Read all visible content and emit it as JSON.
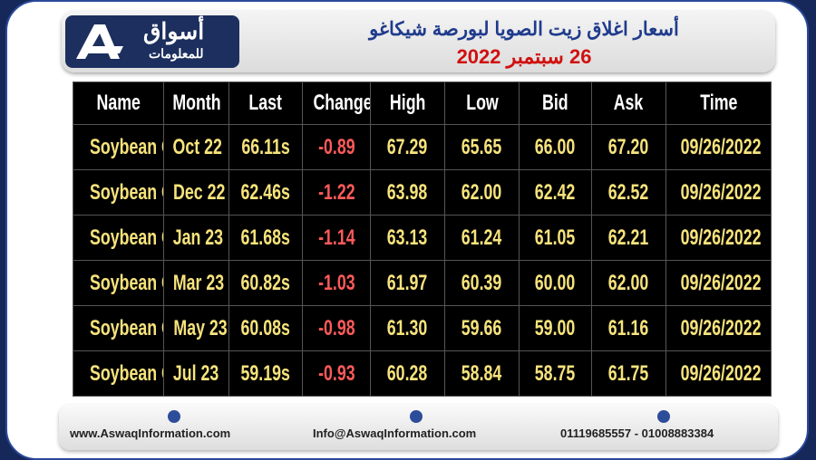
{
  "header": {
    "logo_title": "أسواق",
    "logo_subtitle": "للمعلومات",
    "title": "أسعار اغلاق زيت الصويا لبورصة شيكاغو",
    "date": "26 سبتمبر 2022"
  },
  "table": {
    "columns": [
      "Name",
      "Month",
      "Last",
      "Change",
      "High",
      "Low",
      "Bid",
      "Ask",
      "Time"
    ],
    "rows": [
      [
        "Soybean Oil",
        "Oct 22",
        "66.11s",
        "-0.89",
        "67.29",
        "65.65",
        "66.00",
        "67.20",
        "09/26/2022"
      ],
      [
        "Soybean Oil",
        "Dec 22",
        "62.46s",
        "-1.22",
        "63.98",
        "62.00",
        "62.42",
        "62.52",
        "09/26/2022"
      ],
      [
        "Soybean Oil",
        "Jan 23",
        "61.68s",
        "-1.14",
        "63.13",
        "61.24",
        "61.05",
        "62.21",
        "09/26/2022"
      ],
      [
        "Soybean Oil",
        "Mar 23",
        "60.82s",
        "-1.03",
        "61.97",
        "60.39",
        "60.00",
        "62.00",
        "09/26/2022"
      ],
      [
        "Soybean Oil",
        "May 23",
        "60.08s",
        "-0.98",
        "61.30",
        "59.66",
        "59.00",
        "61.16",
        "09/26/2022"
      ],
      [
        "Soybean Oil",
        "Jul 23",
        "59.19s",
        "-0.93",
        "60.28",
        "58.84",
        "58.75",
        "61.75",
        "09/26/2022"
      ]
    ]
  },
  "footer": {
    "website": "www.AswaqInformation.com",
    "email": "Info@AswaqInformation.com",
    "phones": "01119685557 - 01008883384"
  }
}
